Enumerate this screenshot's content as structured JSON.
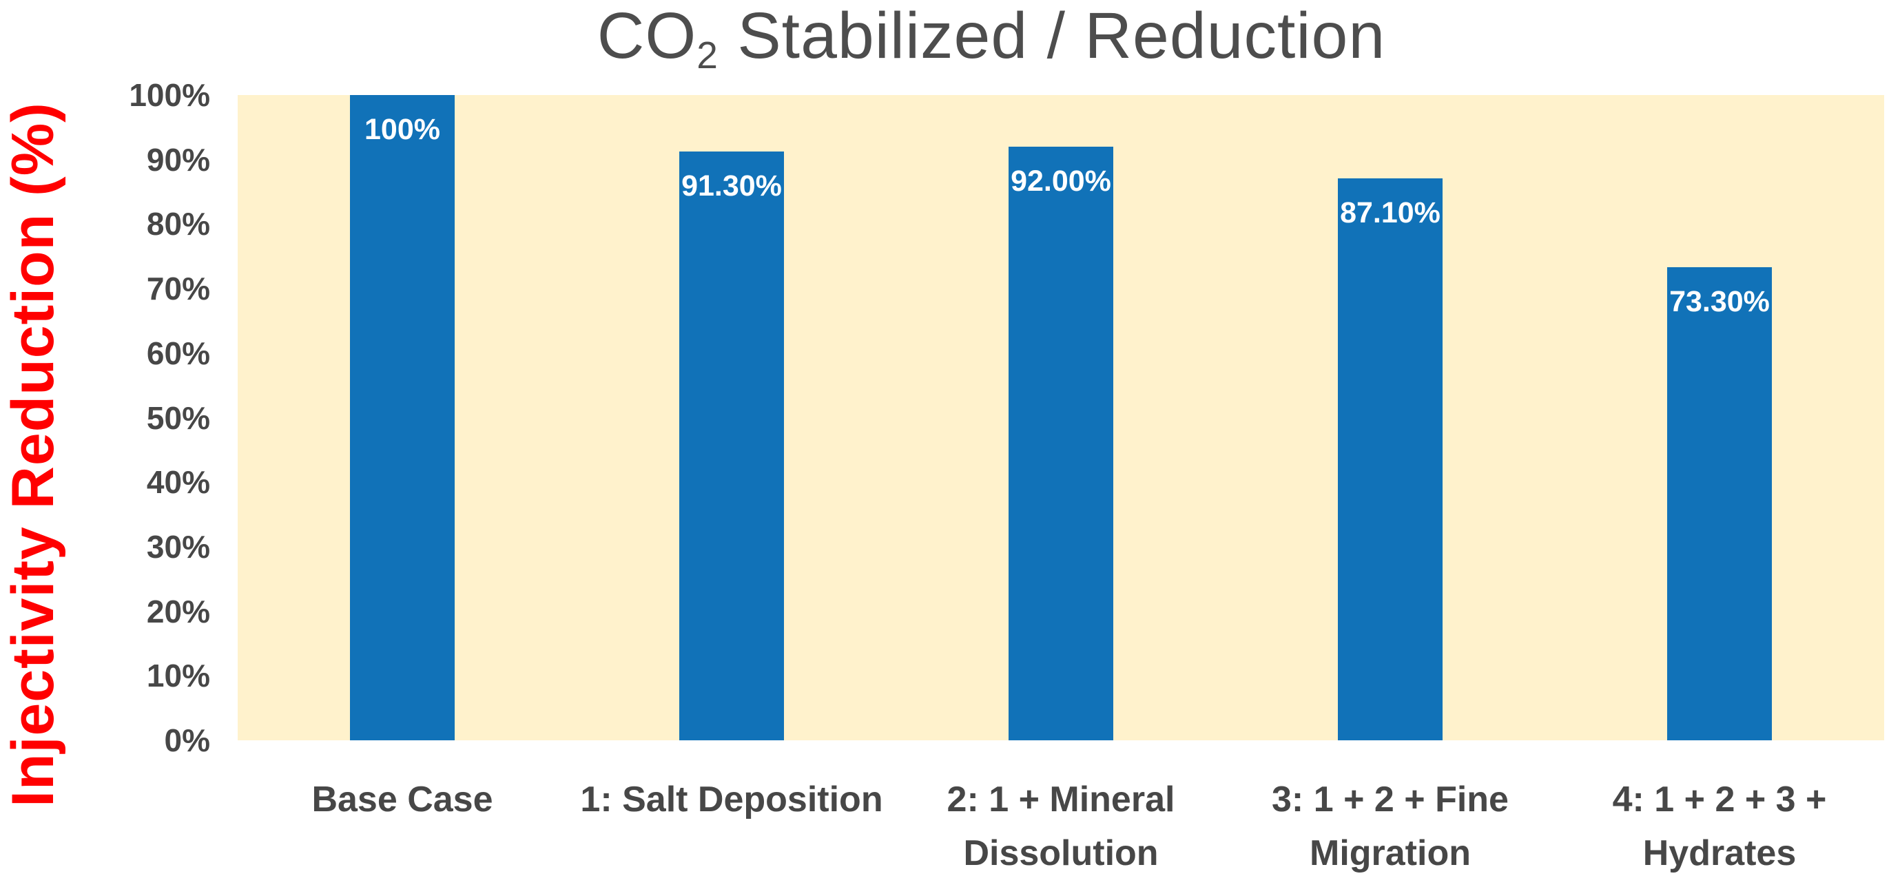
{
  "chart_data": {
    "type": "bar",
    "title": {
      "main": "CO",
      "subscript": "2",
      "rest": " Stabilized / Reduction"
    },
    "ylabel": "Injectivity Reduction (%)",
    "xlabel": "",
    "categories": [
      {
        "line1": "Base Case",
        "line2": ""
      },
      {
        "line1": "1: Salt Deposition",
        "line2": ""
      },
      {
        "line1": "2: 1 + Mineral",
        "line2": "Dissolution"
      },
      {
        "line1": "3: 1 + 2 + Fine",
        "line2": "Migration"
      },
      {
        "line1": "4: 1 + 2 + 3 +",
        "line2": "Hydrates"
      }
    ],
    "categories_full": [
      "Base Case",
      "1: Salt Deposition",
      "2: 1 + Mineral Dissolution",
      "3: 1 + 2 + Fine Migration",
      "4: 1 + 2 + 3 + Hydrates"
    ],
    "values": [
      100,
      91.3,
      92.0,
      87.1,
      73.3
    ],
    "value_labels": [
      "100%",
      "91.30%",
      "92.00%",
      "87.10%",
      "73.30%"
    ],
    "y_ticks": [
      {
        "label": "100%",
        "value": 100
      },
      {
        "label": "90%",
        "value": 90
      },
      {
        "label": "80%",
        "value": 80
      },
      {
        "label": "70%",
        "value": 70
      },
      {
        "label": "60%",
        "value": 60
      },
      {
        "label": "50%",
        "value": 50
      },
      {
        "label": "40%",
        "value": 40
      },
      {
        "label": "30%",
        "value": 30
      },
      {
        "label": "20%",
        "value": 20
      },
      {
        "label": "10%",
        "value": 10
      },
      {
        "label": "0%",
        "value": 0
      }
    ],
    "ylim": [
      0,
      100
    ],
    "grid": false,
    "legend": "none",
    "colors": {
      "bar": "#1172B8",
      "plot_background": "#FFF2CC",
      "title_text": "#4D4D4D",
      "tick_text": "#474747",
      "category_text": "#474747",
      "y_axis_title_text": "#FF0000",
      "value_label_text": "#FFFFFF",
      "page_background": "#FFFFFF"
    }
  }
}
